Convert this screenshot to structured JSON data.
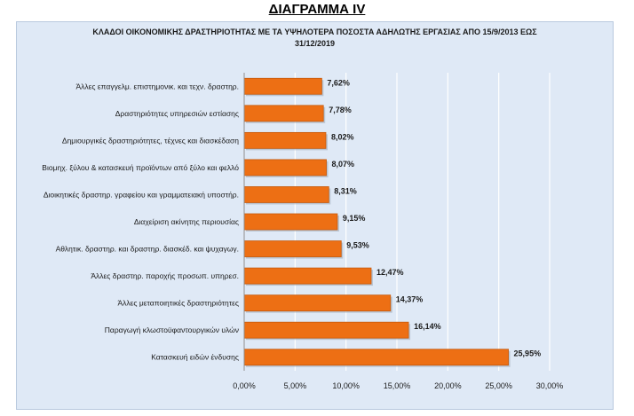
{
  "heading": "ΔΙΑΓΡΑΜΜΑ IV",
  "colors": {
    "bar": "#ed6f14",
    "bar_edge": "#c65a0c",
    "grid": "#ffffff",
    "background": "#dfe9f6"
  },
  "chart_data": {
    "type": "bar",
    "orientation": "horizontal",
    "title_line1": "ΚΛΑΔΟΙ ΟΙΚΟΝΟΜΙΚΗΣ ΔΡΑΣΤΗΡΙΟΤΗΤΑΣ ΜΕ ΤΑ ΥΨΗΛΟΤΕΡΑ ΠΟΣΟΣΤΑ ΑΔΗΛΩΤΗΣ ΕΡΓΑΣΙΑΣ ΑΠΟ 15/9/2013  ΕΩΣ",
    "title_line2": "31/12/2019",
    "xlabel": "",
    "ylabel": "",
    "xlim": [
      0,
      30
    ],
    "grid": true,
    "categories": [
      "Άλλες επαγγελμ. επιστημονικ. και τεχν. δραστηρ.",
      "Δραστηριότητες υπηρεσιών εστίασης",
      "Δημιουργικές δραστηριότητες, τέχνες και διασκέδαση",
      "Βιομηχ. ξύλου & κατασκευή προϊόντων από ξύλο και φελλό",
      "Διοικητικές δραστηρ. γραφείου και γραμματειακή υποστήρ.",
      "Διαχείριση ακίνητης περιουσίας",
      "Αθλητικ. δραστηρ. και δραστηρ. διασκέδ. και ψυχαγωγ.",
      "Άλλες δραστηρ. παροχής προσωπ. υπηρεσ.",
      "Άλλες μεταποιητικές δραστηριότητες",
      "Παραγωγή κλωστοϋφαντουργικών υλών",
      "Κατασκευή ειδών ένδυσης"
    ],
    "values": [
      7.62,
      7.78,
      8.02,
      8.07,
      8.31,
      9.15,
      9.53,
      12.47,
      14.37,
      16.14,
      25.95
    ],
    "value_labels": [
      "7,62%",
      "7,78%",
      "8,02%",
      "8,07%",
      "8,31%",
      "9,15%",
      "9,53%",
      "12,47%",
      "14,37%",
      "16,14%",
      "25,95%"
    ],
    "ticks": [
      0,
      5,
      10,
      15,
      20,
      25,
      30
    ],
    "tick_labels": [
      "0,00%",
      "5,00%",
      "10,00%",
      "15,00%",
      "20,00%",
      "25,00%",
      "30,00%"
    ]
  }
}
